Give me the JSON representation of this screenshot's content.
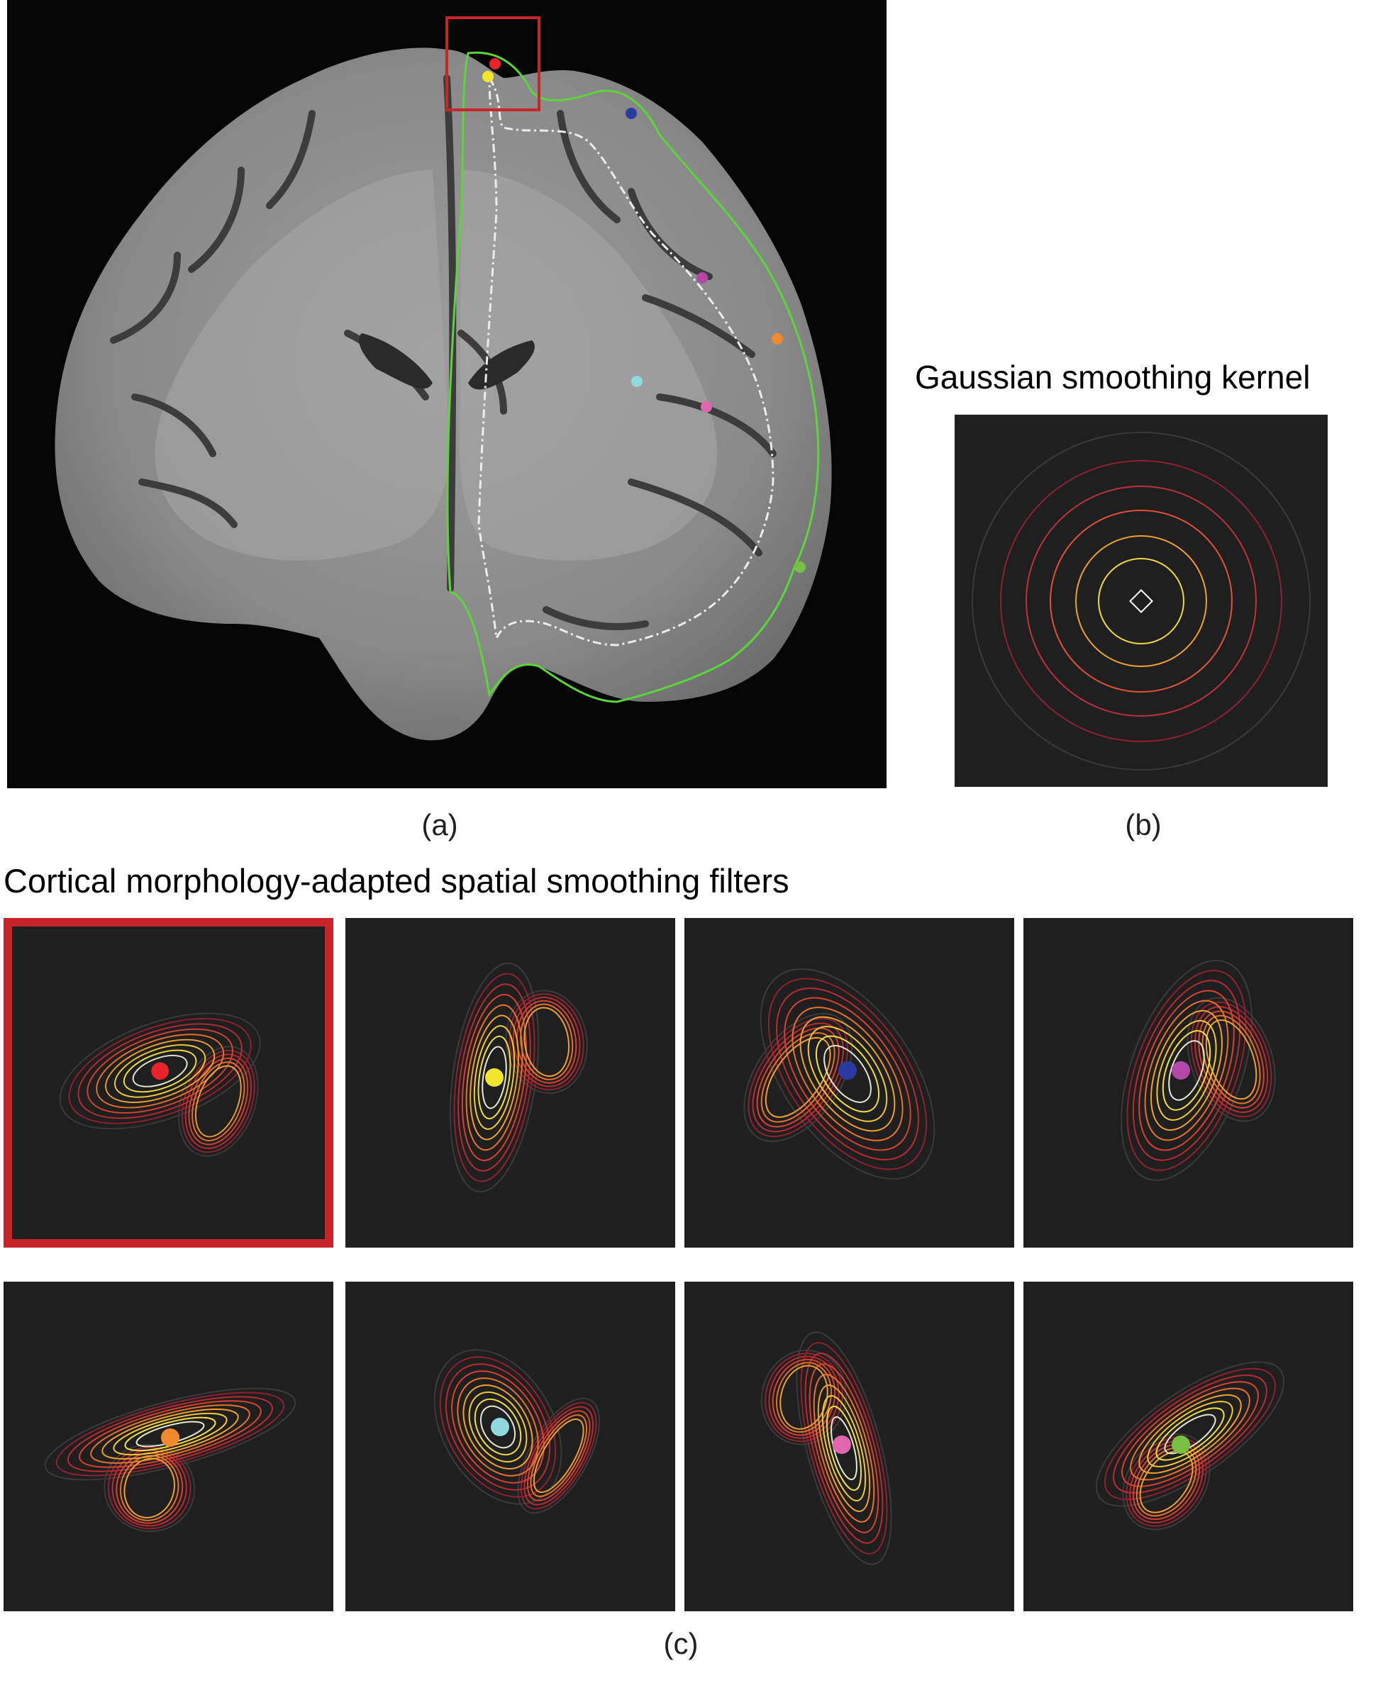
{
  "panel_a": {
    "label": "(a)",
    "seed_colors": [
      "#e8232a",
      "#f2e52f",
      "#2b3aa0",
      "#b347a8",
      "#f08a2c",
      "#8fd8e0",
      "#e066b0",
      "#77c043"
    ],
    "overlay_colors": {
      "boundary": "#5bd63a",
      "midline": "#e8e8e8",
      "roi_box": "#c8252b"
    }
  },
  "panel_b": {
    "title": "Gaussian smoothing kernel",
    "label": "(b)",
    "contour_colors": [
      "#3a3a3a",
      "#8c2230",
      "#c0303a",
      "#e0503a",
      "#f0a030",
      "#f2d840"
    ]
  },
  "panel_c": {
    "title": "Cortical morphology-adapted spatial smoothing filters",
    "label": "(c)",
    "filters": [
      {
        "seed": "red",
        "color": "#e8232a",
        "highlighted": true
      },
      {
        "seed": "yellow",
        "color": "#f2e52f",
        "highlighted": false
      },
      {
        "seed": "blue",
        "color": "#2b3aa0",
        "highlighted": false
      },
      {
        "seed": "purple",
        "color": "#b347a8",
        "highlighted": false
      },
      {
        "seed": "orange",
        "color": "#f08a2c",
        "highlighted": false
      },
      {
        "seed": "cyan",
        "color": "#8fd8e0",
        "highlighted": false
      },
      {
        "seed": "pink",
        "color": "#e066b0",
        "highlighted": false
      },
      {
        "seed": "green",
        "color": "#77c043",
        "highlighted": false
      }
    ],
    "contour_colors": [
      "#e8e8d0",
      "#f2e040",
      "#f2c835",
      "#f0a030",
      "#e8702e",
      "#d9412f",
      "#b82b32",
      "#8c2230",
      "#3a3a3a"
    ]
  }
}
